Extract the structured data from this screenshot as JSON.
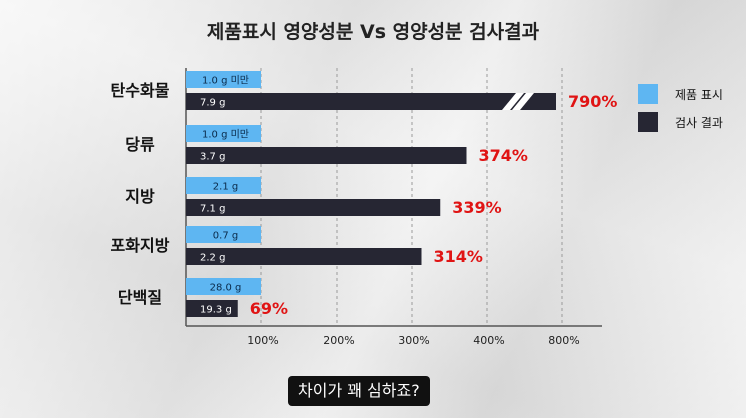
{
  "chart_data": {
    "type": "bar",
    "title": "제품표시 영양성분 Vs 영양성분 검사결과",
    "categories": [
      "탄수화물",
      "당류",
      "지방",
      "포화지방",
      "단백질"
    ],
    "series": [
      {
        "name": "제품 표시",
        "color": "#5eb6f2",
        "value_labels": [
          "1.0 g 미만",
          "1.0 g 미만",
          "2.1 g",
          "0.7 g",
          "28.0 g"
        ],
        "percent": [
          100,
          100,
          100,
          100,
          100
        ]
      },
      {
        "name": "검사 결과",
        "color": "#262633",
        "value_labels": [
          "7.9 g",
          "3.7 g",
          "7.1 g",
          "2.2 g",
          "19.3 g"
        ],
        "percent": [
          790,
          374,
          339,
          314,
          69
        ]
      }
    ],
    "percent_labels": [
      "790%",
      "374%",
      "339%",
      "314%",
      "69%"
    ],
    "axis_break": true,
    "x_ticks": [
      "100%",
      "200%",
      "300%",
      "400%",
      "800%"
    ],
    "grid": true,
    "legend_position": "right"
  },
  "subtitle": "차이가 꽤 심하죠?"
}
